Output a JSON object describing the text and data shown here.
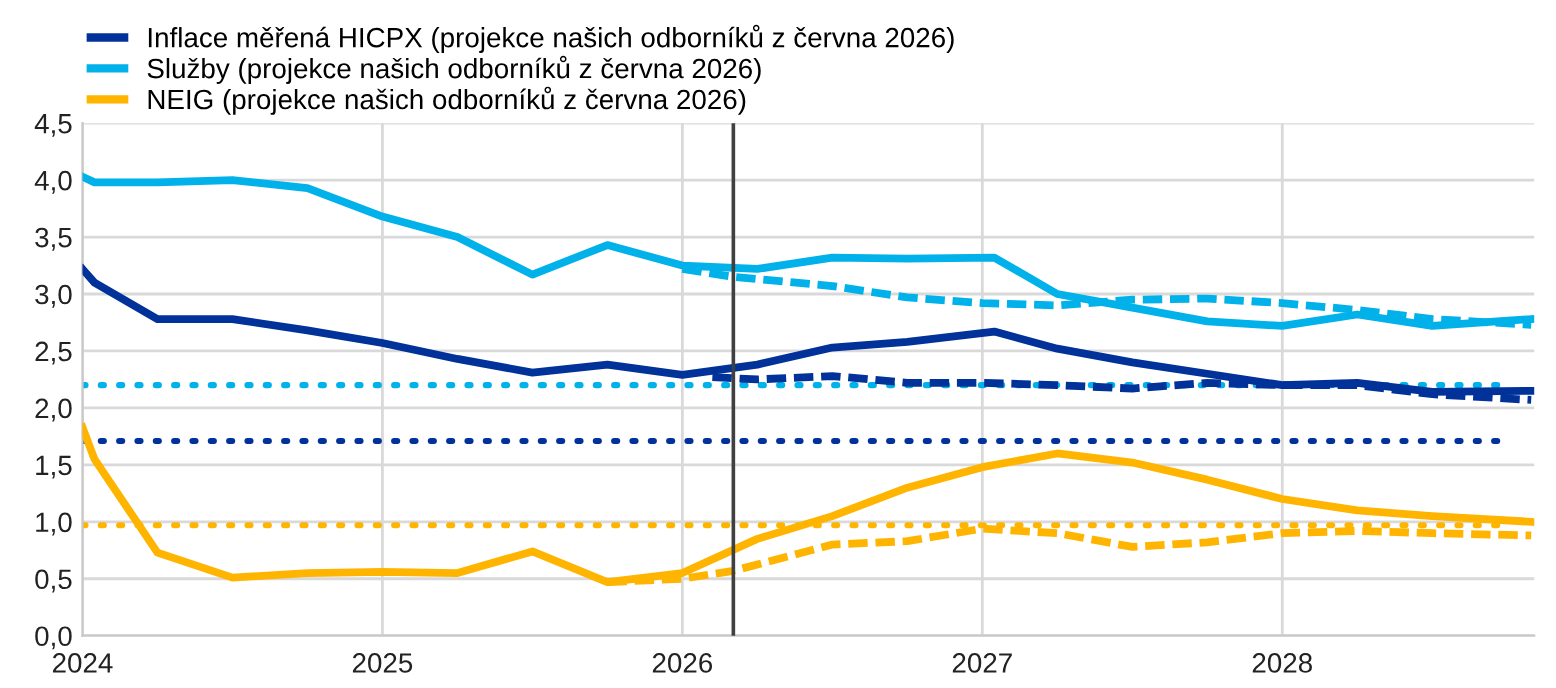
{
  "chart_data": {
    "type": "line",
    "series": [
      {
        "name": "Inflace měřená HICPX (projekce našich odborníků z června 2026)",
        "color": "#003299",
        "line_style": "solid",
        "x": [
          2024.0,
          2024.04,
          2024.25,
          2024.5,
          2024.75,
          2025.0,
          2025.25,
          2025.5,
          2025.75,
          2026.0,
          2026.25,
          2026.5,
          2026.75,
          2027.04,
          2027.25,
          2027.5,
          2027.75,
          2028.0,
          2028.25,
          2028.5,
          2028.83
        ],
        "values": [
          3.22,
          3.1,
          2.78,
          2.78,
          2.68,
          2.57,
          2.43,
          2.31,
          2.38,
          2.29,
          2.38,
          2.53,
          2.58,
          2.67,
          2.52,
          2.4,
          2.3,
          2.2,
          2.22,
          2.14,
          2.15
        ]
      },
      {
        "name": "Služby (projekce našich odborníků z června 2026)",
        "color": "#00b1ea",
        "line_style": "solid",
        "x": [
          2024.0,
          2024.04,
          2024.25,
          2024.5,
          2024.75,
          2025.0,
          2025.25,
          2025.5,
          2025.75,
          2026.0,
          2026.25,
          2026.5,
          2026.75,
          2027.04,
          2027.25,
          2027.5,
          2027.75,
          2028.0,
          2028.25,
          2028.5,
          2028.83
        ],
        "values": [
          4.03,
          3.98,
          3.98,
          4.0,
          3.93,
          3.68,
          3.5,
          3.17,
          3.43,
          3.25,
          3.22,
          3.32,
          3.31,
          3.32,
          3.0,
          2.88,
          2.76,
          2.72,
          2.82,
          2.72,
          2.78
        ]
      },
      {
        "name": "NEIG (projekce našich odborníků z června 2026)",
        "color": "#ffb400",
        "line_style": "solid",
        "x": [
          2024.0,
          2024.04,
          2024.25,
          2024.5,
          2024.75,
          2025.0,
          2025.25,
          2025.5,
          2025.75,
          2026.0,
          2026.25,
          2026.5,
          2026.75,
          2027.0,
          2027.25,
          2027.5,
          2027.75,
          2028.0,
          2028.25,
          2028.5,
          2028.83
        ],
        "values": [
          1.83,
          1.55,
          0.73,
          0.51,
          0.55,
          0.56,
          0.55,
          0.74,
          0.47,
          0.55,
          0.85,
          1.05,
          1.3,
          1.48,
          1.6,
          1.52,
          1.37,
          1.2,
          1.1,
          1.05,
          1.0
        ]
      },
      {
        "color": "#003299",
        "line_style": "dashed",
        "x": [
          2026.1,
          2026.25,
          2026.5,
          2026.75,
          2027.0,
          2027.25,
          2027.5,
          2027.75,
          2028.0,
          2028.25,
          2028.5,
          2028.83
        ],
        "values": [
          2.27,
          2.25,
          2.28,
          2.22,
          2.22,
          2.2,
          2.17,
          2.22,
          2.2,
          2.2,
          2.12,
          2.07
        ]
      },
      {
        "color": "#00b1ea",
        "line_style": "dashed",
        "x": [
          2026.0,
          2026.17,
          2026.5,
          2026.75,
          2027.0,
          2027.25,
          2027.5,
          2027.75,
          2028.0,
          2028.25,
          2028.5,
          2028.83
        ],
        "values": [
          3.22,
          3.15,
          3.07,
          2.97,
          2.92,
          2.9,
          2.95,
          2.96,
          2.92,
          2.86,
          2.78,
          2.73
        ]
      },
      {
        "color": "#ffb400",
        "line_style": "dashed",
        "x": [
          2025.75,
          2026.0,
          2026.17,
          2026.5,
          2026.75,
          2027.0,
          2027.25,
          2027.5,
          2027.75,
          2028.0,
          2028.25,
          2028.5,
          2028.83
        ],
        "values": [
          0.47,
          0.5,
          0.57,
          0.8,
          0.83,
          0.94,
          0.9,
          0.78,
          0.82,
          0.9,
          0.92,
          0.9,
          0.88
        ]
      }
    ],
    "ref_lines": [
      {
        "axis": "y",
        "value": 2.2,
        "color": "#00b1ea",
        "line_style": "dotted"
      },
      {
        "axis": "y",
        "value": 1.71,
        "color": "#003299",
        "line_style": "dotted"
      },
      {
        "axis": "y",
        "value": 0.97,
        "color": "#ffb400",
        "line_style": "dotted"
      },
      {
        "axis": "x",
        "value": 2026.17,
        "color": "#404040",
        "line_style": "solid"
      }
    ],
    "xlim": [
      2024.0,
      2028.84
    ],
    "xticks": [
      2024,
      2025,
      2026,
      2027,
      2028
    ],
    "ylim": [
      0,
      4.5
    ],
    "yticks": [
      {
        "value": 0,
        "label": "0,0"
      },
      {
        "value": 0.5,
        "label": "0,5"
      },
      {
        "value": 1.0,
        "label": "1,0"
      },
      {
        "value": 1.5,
        "label": "1,5"
      },
      {
        "value": 2.0,
        "label": "2,0"
      },
      {
        "value": 2.5,
        "label": "2,5"
      },
      {
        "value": 3.0,
        "label": "3,0"
      },
      {
        "value": 3.5,
        "label": "3,5"
      },
      {
        "value": 4.0,
        "label": "4,0"
      },
      {
        "value": 4.5,
        "label": "4,5"
      }
    ],
    "grid": true,
    "legend": "top",
    "marker": "none"
  }
}
